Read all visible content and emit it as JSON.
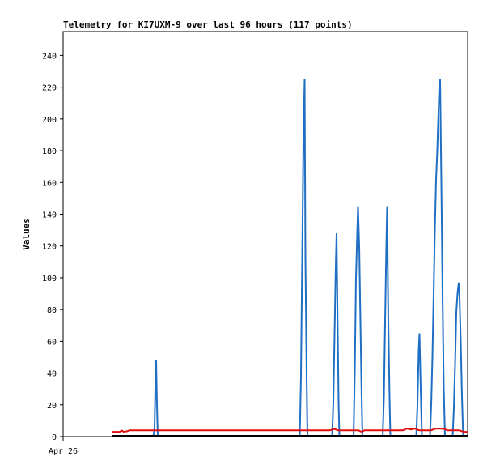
{
  "chart_data": {
    "type": "line",
    "title": "Telemetry for KI7UXM-9 over last 96 hours (117 points)",
    "xlabel": "",
    "ylabel": "Values",
    "x_tick_labels": [
      {
        "label": "Apr 26",
        "x": 0
      }
    ],
    "ylim": [
      0,
      255
    ],
    "xlim": [
      0,
      100
    ],
    "y_ticks": [
      0,
      20,
      40,
      60,
      80,
      100,
      120,
      140,
      160,
      180,
      200,
      220,
      240
    ],
    "grid": false,
    "legend": "none",
    "series": [
      {
        "color": "#1f6fc4",
        "points": [
          [
            12.0,
            0
          ],
          [
            22.3,
            0
          ],
          [
            22.6,
            5
          ],
          [
            22.8,
            30
          ],
          [
            23.0,
            48
          ],
          [
            23.2,
            20
          ],
          [
            23.4,
            0
          ],
          [
            58.5,
            0
          ],
          [
            58.8,
            38
          ],
          [
            59.1,
            112
          ],
          [
            59.4,
            187
          ],
          [
            59.7,
            225
          ],
          [
            59.9,
            112
          ],
          [
            60.2,
            38
          ],
          [
            60.4,
            0
          ],
          [
            66.5,
            0
          ],
          [
            66.8,
            22
          ],
          [
            67.1,
            64
          ],
          [
            67.4,
            107
          ],
          [
            67.6,
            128
          ],
          [
            67.9,
            64
          ],
          [
            68.1,
            22
          ],
          [
            68.3,
            0
          ],
          [
            71.8,
            0
          ],
          [
            72.1,
            40
          ],
          [
            72.4,
            100
          ],
          [
            72.7,
            128
          ],
          [
            72.9,
            145
          ],
          [
            73.2,
            120
          ],
          [
            73.5,
            72
          ],
          [
            73.8,
            24
          ],
          [
            74.0,
            0
          ],
          [
            79.0,
            0
          ],
          [
            79.3,
            24
          ],
          [
            79.6,
            72
          ],
          [
            79.9,
            120
          ],
          [
            80.1,
            145
          ],
          [
            80.4,
            72
          ],
          [
            80.7,
            24
          ],
          [
            80.9,
            0
          ],
          [
            87.3,
            0
          ],
          [
            87.6,
            20
          ],
          [
            87.9,
            54
          ],
          [
            88.1,
            65
          ],
          [
            88.4,
            30
          ],
          [
            88.7,
            0
          ],
          [
            90.7,
            0
          ],
          [
            91.0,
            20
          ],
          [
            91.3,
            50
          ],
          [
            91.6,
            90
          ],
          [
            91.9,
            130
          ],
          [
            92.2,
            162
          ],
          [
            92.5,
            180
          ],
          [
            92.8,
            205
          ],
          [
            93.0,
            220
          ],
          [
            93.2,
            225
          ],
          [
            93.5,
            160
          ],
          [
            93.8,
            90
          ],
          [
            94.1,
            30
          ],
          [
            94.4,
            0
          ],
          [
            96.3,
            0
          ],
          [
            96.6,
            18
          ],
          [
            96.9,
            45
          ],
          [
            97.2,
            78
          ],
          [
            97.5,
            90
          ],
          [
            97.8,
            97
          ],
          [
            98.0,
            88
          ],
          [
            98.3,
            60
          ],
          [
            98.6,
            25
          ],
          [
            98.9,
            0
          ],
          [
            100.0,
            0
          ]
        ]
      },
      {
        "color": "#e01010",
        "points": [
          [
            12.0,
            3
          ],
          [
            14.0,
            3
          ],
          [
            14.5,
            3.8
          ],
          [
            15.0,
            3
          ],
          [
            16.0,
            3.5
          ],
          [
            16.5,
            4
          ],
          [
            18.0,
            4
          ],
          [
            22.0,
            4
          ],
          [
            26.0,
            4
          ],
          [
            40.0,
            4
          ],
          [
            55.0,
            4
          ],
          [
            60.0,
            4
          ],
          [
            66.0,
            4
          ],
          [
            67.0,
            4.8
          ],
          [
            68.0,
            4
          ],
          [
            73.0,
            4
          ],
          [
            73.8,
            3
          ],
          [
            74.5,
            4
          ],
          [
            80.0,
            4
          ],
          [
            84.0,
            4
          ],
          [
            85.0,
            5
          ],
          [
            86.0,
            4.5
          ],
          [
            87.0,
            5
          ],
          [
            88.0,
            4
          ],
          [
            91.0,
            4
          ],
          [
            92.0,
            5
          ],
          [
            94.0,
            5
          ],
          [
            95.0,
            4
          ],
          [
            98.0,
            4
          ],
          [
            99.0,
            3
          ],
          [
            100.0,
            3
          ]
        ]
      }
    ],
    "baseline_color": "#000000",
    "plot_border_color": "#000000"
  }
}
